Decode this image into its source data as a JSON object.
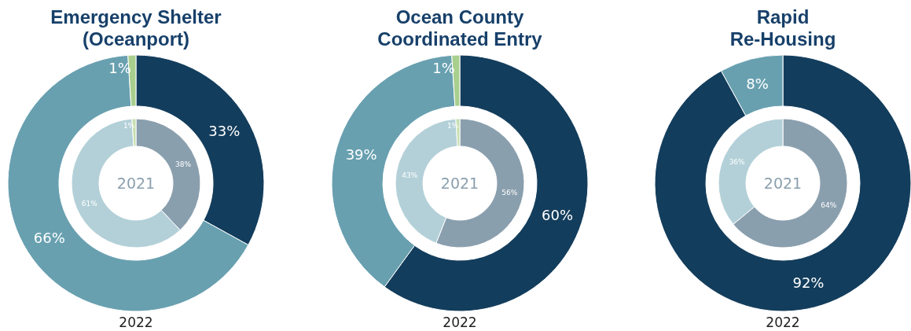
{
  "chart_data": [
    {
      "type": "donut",
      "title": "Emergency Shelter\n(Oceanport)",
      "categories": [
        null,
        null,
        null
      ],
      "series": [
        {
          "name": "2022",
          "values": [
            33,
            66,
            1
          ],
          "colors": [
            "#133d5c",
            "#68a0b0",
            "#a8cf8e"
          ],
          "value_labels": [
            "33%",
            "66%",
            "1%"
          ]
        },
        {
          "name": "2021",
          "values": [
            38,
            61,
            1
          ],
          "colors": [
            "#8a9fae",
            "#b3d0d8",
            "#c5dfb0"
          ],
          "value_labels": [
            "38%",
            "61%",
            "1%"
          ]
        }
      ],
      "legend": false
    },
    {
      "type": "donut",
      "title": "Ocean County\nCoordinated Entry",
      "categories": [
        null,
        null,
        null
      ],
      "series": [
        {
          "name": "2022",
          "values": [
            60,
            39,
            1
          ],
          "colors": [
            "#133d5c",
            "#68a0b0",
            "#a8cf8e"
          ],
          "value_labels": [
            "60%",
            "39%",
            "1%"
          ]
        },
        {
          "name": "2021",
          "values": [
            56,
            43,
            1
          ],
          "colors": [
            "#8a9fae",
            "#b3d0d8",
            "#c5dfb0"
          ],
          "value_labels": [
            "56%",
            "43%",
            "1%"
          ]
        }
      ],
      "legend": false
    },
    {
      "type": "donut",
      "title": "Rapid\nRe-Housing",
      "categories": [
        null,
        null
      ],
      "series": [
        {
          "name": "2022",
          "values": [
            92,
            8
          ],
          "colors": [
            "#133d5c",
            "#68a0b0"
          ],
          "value_labels": [
            "92%",
            "8%"
          ]
        },
        {
          "name": "2021",
          "values": [
            64,
            36
          ],
          "colors": [
            "#8a9fae",
            "#b3d0d8"
          ],
          "value_labels": [
            "64%",
            "36%"
          ]
        }
      ],
      "legend": false
    }
  ]
}
